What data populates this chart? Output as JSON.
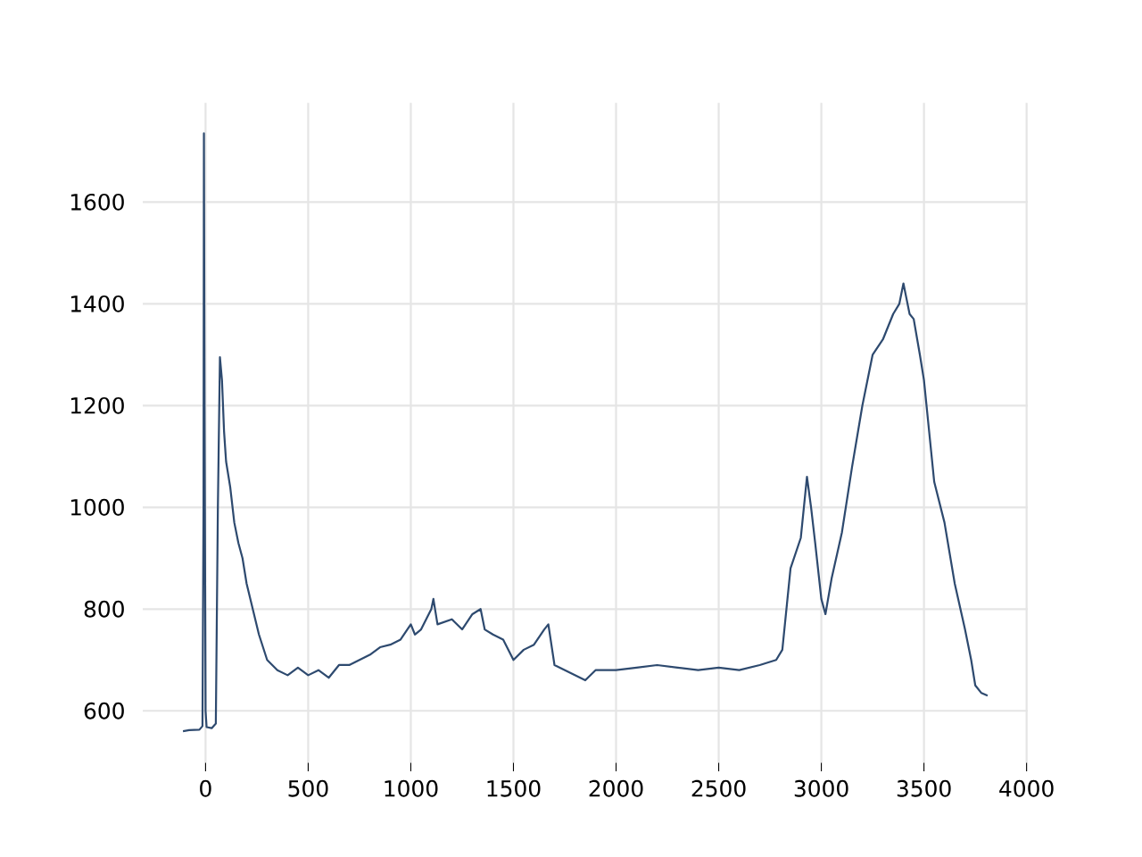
{
  "chart_data": {
    "type": "line",
    "color": "#2e4a6f",
    "grid": true,
    "xlim": [
      -306,
      4006
    ],
    "ylim": [
      498,
      1795
    ],
    "xticks": [
      0,
      500,
      1000,
      1500,
      2000,
      2500,
      3000,
      3500,
      4000
    ],
    "yticks": [
      600,
      800,
      1000,
      1200,
      1400,
      1600
    ],
    "x": [
      -110,
      -80,
      -30,
      -15,
      -10,
      -8,
      -5,
      0,
      5,
      30,
      50,
      60,
      70,
      80,
      90,
      100,
      120,
      140,
      160,
      180,
      200,
      230,
      260,
      300,
      350,
      400,
      450,
      500,
      550,
      600,
      650,
      700,
      750,
      800,
      850,
      900,
      950,
      1000,
      1020,
      1050,
      1100,
      1110,
      1130,
      1200,
      1250,
      1300,
      1340,
      1360,
      1400,
      1450,
      1500,
      1550,
      1600,
      1650,
      1670,
      1700,
      1750,
      1800,
      1850,
      1900,
      2000,
      2100,
      2200,
      2300,
      2400,
      2500,
      2600,
      2700,
      2780,
      2810,
      2850,
      2900,
      2930,
      2950,
      2970,
      3000,
      3020,
      3050,
      3100,
      3150,
      3200,
      3250,
      3300,
      3350,
      3380,
      3400,
      3430,
      3450,
      3480,
      3500,
      3550,
      3600,
      3650,
      3700,
      3730,
      3750,
      3780,
      3810
    ],
    "values": [
      560,
      562,
      563,
      570,
      1000,
      1735,
      1200,
      600,
      568,
      566,
      575,
      1000,
      1295,
      1250,
      1150,
      1090,
      1040,
      970,
      930,
      900,
      850,
      800,
      750,
      700,
      680,
      670,
      685,
      670,
      680,
      665,
      690,
      690,
      700,
      710,
      725,
      730,
      740,
      770,
      750,
      760,
      800,
      820,
      770,
      780,
      760,
      790,
      800,
      760,
      750,
      740,
      700,
      720,
      730,
      760,
      770,
      690,
      680,
      670,
      660,
      680,
      680,
      685,
      690,
      685,
      680,
      685,
      680,
      690,
      700,
      720,
      880,
      940,
      1060,
      1000,
      930,
      820,
      790,
      860,
      950,
      1080,
      1200,
      1300,
      1330,
      1380,
      1400,
      1440,
      1380,
      1370,
      1300,
      1250,
      1050,
      970,
      850,
      760,
      700,
      650,
      635,
      630
    ]
  }
}
